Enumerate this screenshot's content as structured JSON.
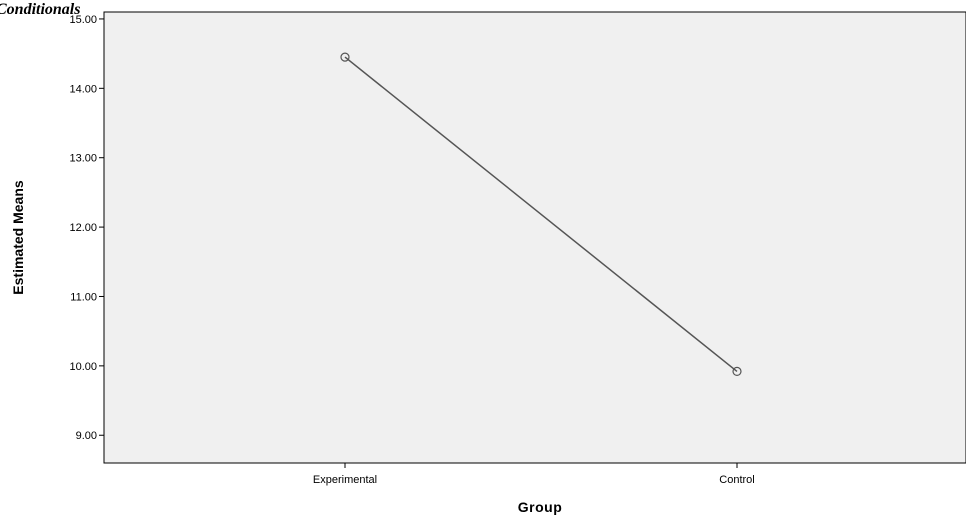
{
  "heading": "Conditionals",
  "chart_data": {
    "type": "line",
    "categories": [
      "Experimental",
      "Control"
    ],
    "series": [
      {
        "values": [
          14.45,
          9.92
        ],
        "color": "#555555",
        "marker": "circle"
      }
    ],
    "xlabel": "Group",
    "ylabel": "Estimated Means",
    "ylim": [
      8.6,
      15.1
    ],
    "yticks": [
      9.0,
      10.0,
      11.0,
      12.0,
      13.0,
      14.0,
      15.0
    ],
    "ytick_labels": [
      "9.00",
      "10.00",
      "11.00",
      "12.00",
      "13.00",
      "14.00",
      "15.00"
    ],
    "plot_background": "#f0f0f0",
    "grid": false
  }
}
